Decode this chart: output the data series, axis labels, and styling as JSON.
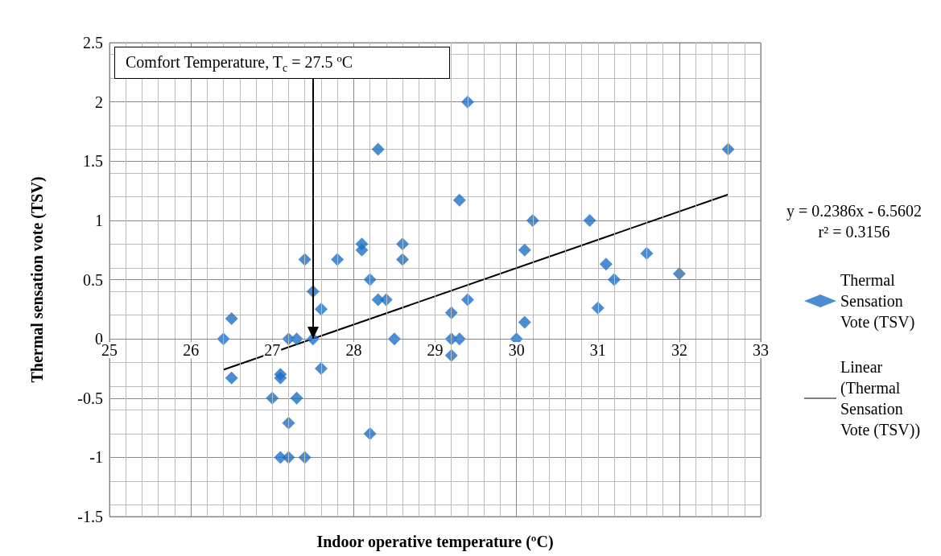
{
  "chart_data": {
    "type": "scatter",
    "xlabel": "Indoor operative temperature (ºC)",
    "ylabel": "Thermal sensation vote (TSV)",
    "xlim": [
      25,
      33
    ],
    "xticks": [
      25,
      26,
      27,
      28,
      29,
      30,
      31,
      32,
      33
    ],
    "ylim": [
      -1.5,
      2.5
    ],
    "yticks": [
      -1.5,
      -1,
      -0.5,
      0,
      0.5,
      1,
      1.5,
      2,
      2.5
    ],
    "grid": true,
    "legend": "right",
    "marker": "diamond",
    "series": [
      {
        "name": "Thermal Sensation Vote (TSV)",
        "color": "#1f6fc5",
        "x": [
          26.4,
          26.5,
          26.5,
          27,
          27.1,
          27.1,
          27.1,
          27.2,
          27.2,
          27.2,
          27.3,
          27.3,
          27.4,
          27.4,
          27.5,
          27.5,
          27.6,
          27.6,
          27.8,
          28.1,
          28.1,
          28.2,
          28.2,
          28.3,
          28.3,
          28.4,
          28.5,
          28.6,
          28.6,
          29.2,
          29.2,
          29.2,
          29.3,
          29.3,
          29.4,
          29.4,
          30,
          30.1,
          30.1,
          30.2,
          30.9,
          31,
          31.1,
          31.2,
          31.6,
          32,
          32.6
        ],
        "values": [
          0,
          0.17,
          -0.33,
          -0.5,
          -0.3,
          -0.33,
          -1,
          -1,
          -0.71,
          0,
          0,
          -0.5,
          0.67,
          -1,
          0.4,
          0,
          0.25,
          -0.25,
          0.67,
          0.8,
          0.75,
          0.5,
          -0.8,
          1.6,
          0.33,
          0.33,
          0,
          0.8,
          0.67,
          0.22,
          0,
          -0.14,
          0,
          1.17,
          2,
          0.33,
          0,
          0.75,
          0.14,
          1,
          1,
          0.26,
          0.63,
          0.5,
          0.72,
          0.55,
          1.6
        ]
      },
      {
        "name": "Linear (Thermal Sensation Vote (TSV))",
        "type": "line",
        "color": "#000000",
        "marker": "none",
        "x": [
          26.4,
          32.6
        ],
        "values": [
          -0.261,
          1.218
        ]
      }
    ],
    "annotations": [
      {
        "text": "Comfort Temperature, T$_{c}$ = 27.5 ºC",
        "x": 27.5,
        "y": 0
      },
      "y = 0.2386x - 6.5602",
      "r² = 0.3156"
    ]
  }
}
